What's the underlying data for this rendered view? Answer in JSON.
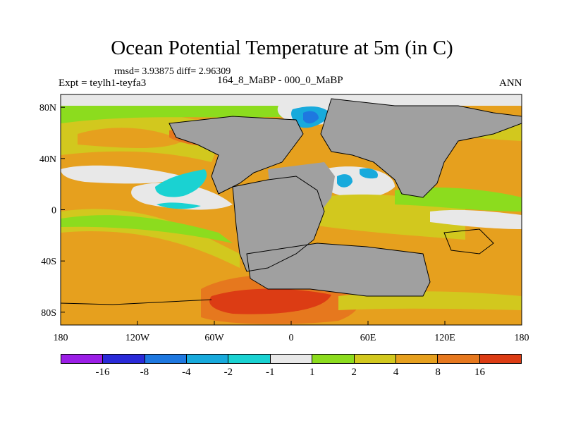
{
  "title": "Ocean Potential Temperature at 5m (in C)",
  "stats": "rmsd= 3.93875  diff= 2.96309",
  "experiment": "Expt = teylh1-teyfa3",
  "subtitle": "164_8_MaBP - 000_0_MaBP",
  "season": "ANN",
  "map": {
    "projection": "cylindrical-equidistant",
    "lon_range": [
      -180,
      180
    ],
    "lat_range": [
      -90,
      90
    ],
    "lon_ticks": [
      "180",
      "120W",
      "60W",
      "0",
      "60E",
      "120E",
      "180"
    ],
    "lat_ticks": [
      "80N",
      "40N",
      "0",
      "40S",
      "80S"
    ],
    "variable": "temperature difference (C)"
  },
  "colorbar": {
    "levels": [
      "-16",
      "-8",
      "-4",
      "-2",
      "-1",
      "1",
      "2",
      "4",
      "8",
      "16"
    ],
    "colors": [
      "#9b1ee6",
      "#2a2ad8",
      "#1e78e0",
      "#18aadc",
      "#1ad2d2",
      "#e8e8e8",
      "#8cdc1e",
      "#d2c81e",
      "#e6a01e",
      "#e6781e",
      "#dc3c14"
    ]
  }
}
